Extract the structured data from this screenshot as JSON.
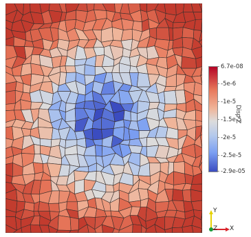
{
  "scalar_bar": {
    "title": "Disp Z",
    "ticks": [
      "6.7e-08",
      "-5e-6",
      "-1e-5",
      "-1.5e-5",
      "-2e-5",
      "-2.5e-5",
      "-2.9e-05"
    ],
    "colormap": {
      "top": "#b40426",
      "mid": "#dcdcdc",
      "bottom": "#3b4cc0"
    }
  },
  "axes": {
    "y_label": "Y",
    "z_label": "Z",
    "x_label": "X",
    "y_color": "#e6d200",
    "x_color": "#d9232a",
    "z_color": "#1a9a3a"
  }
}
